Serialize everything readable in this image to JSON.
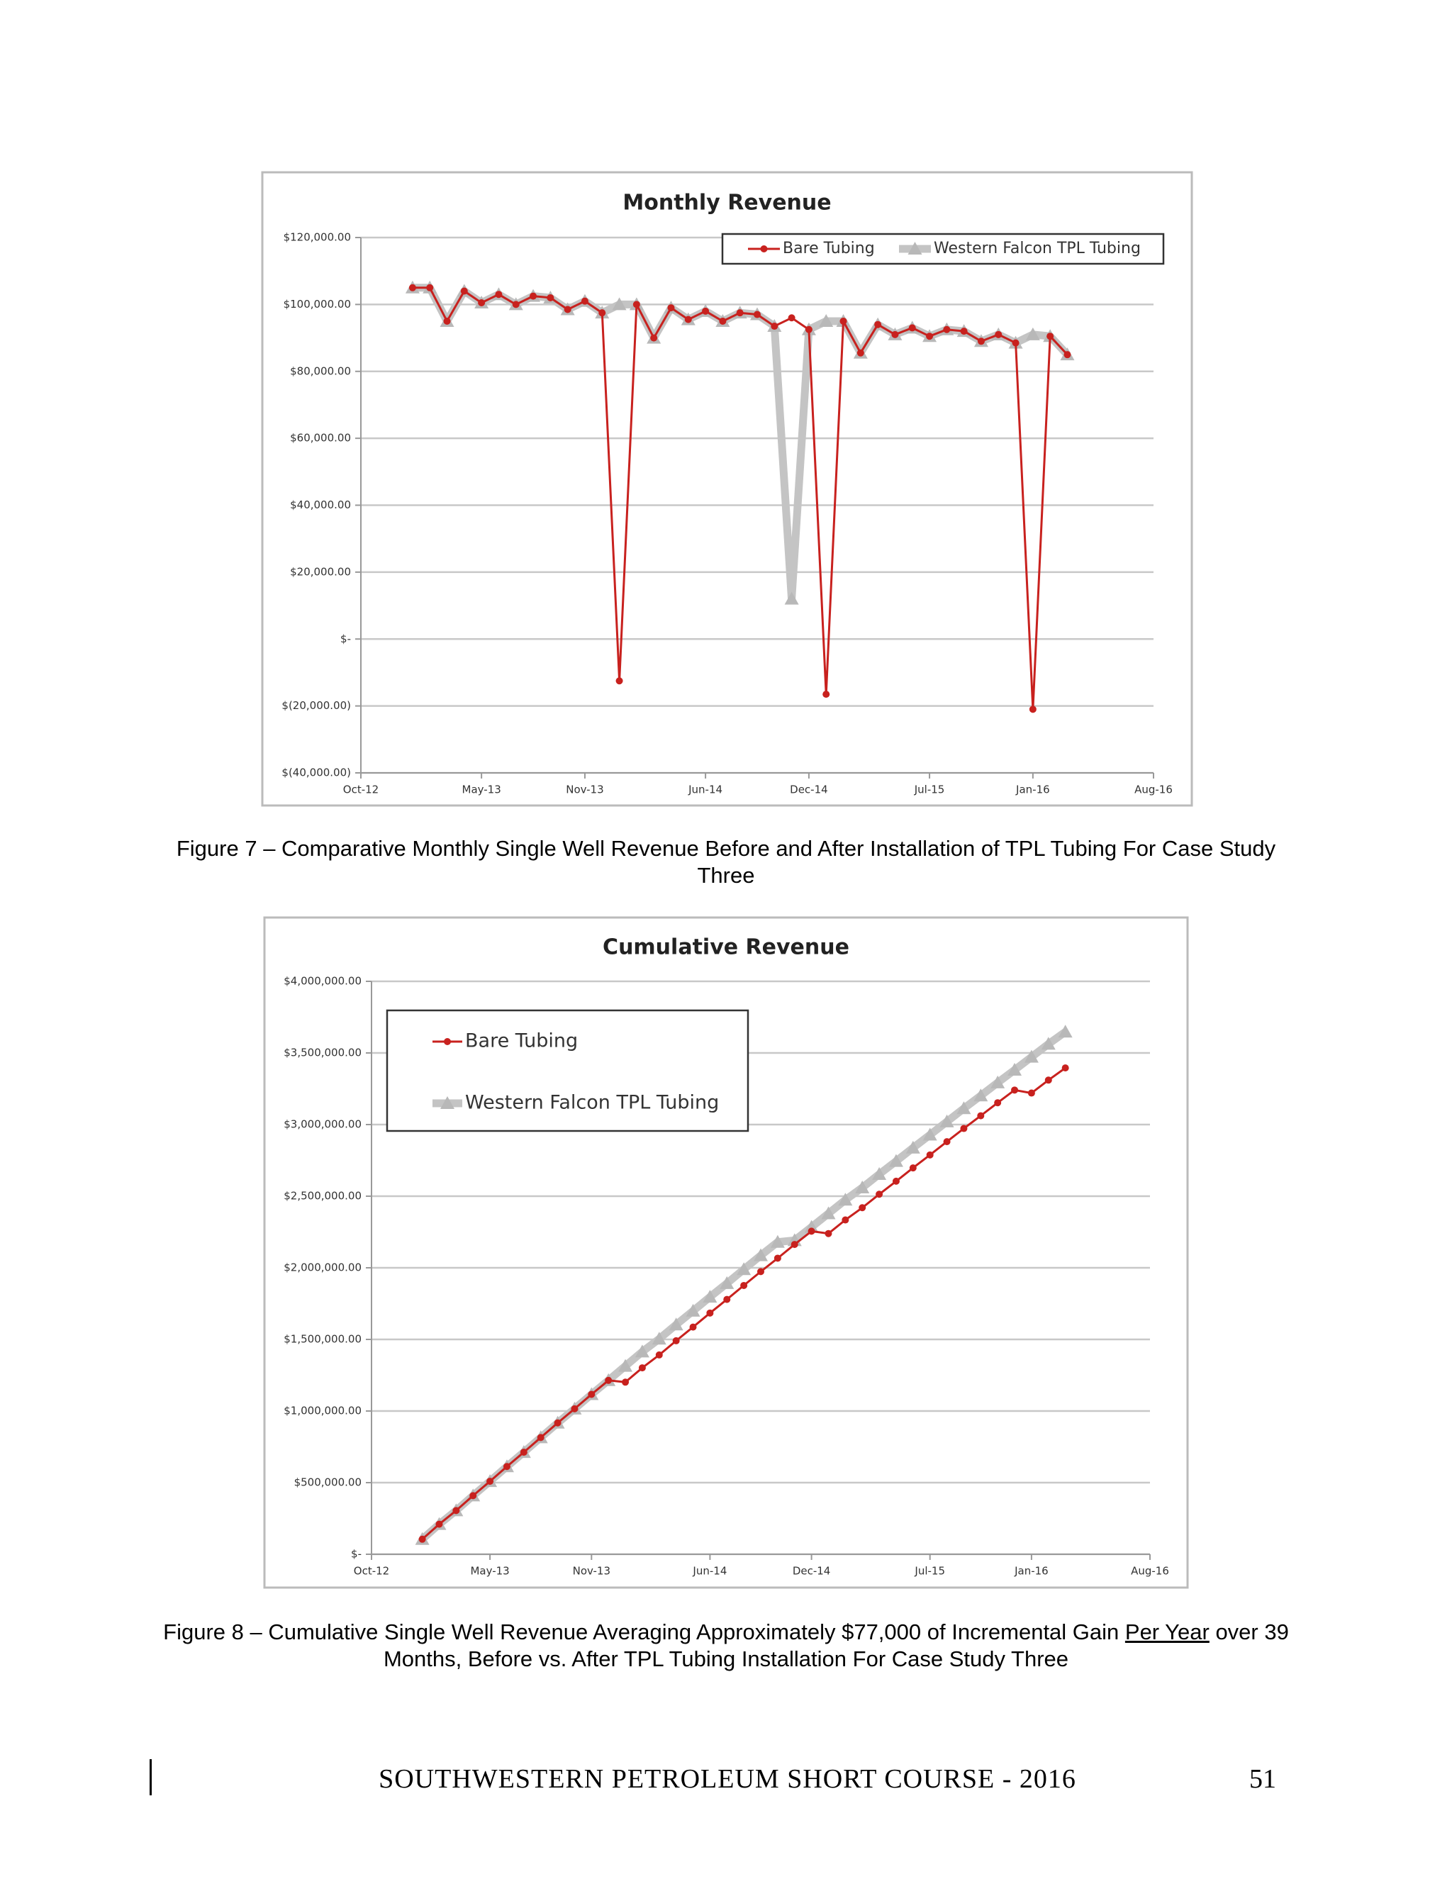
{
  "chart_data": [
    {
      "type": "line",
      "title": "Monthly Revenue",
      "x": [
        "Jan-13",
        "Feb-13",
        "Mar-13",
        "Apr-13",
        "May-13",
        "Jun-13",
        "Jul-13",
        "Aug-13",
        "Sep-13",
        "Oct-13",
        "Nov-13",
        "Dec-13",
        "Jan-14",
        "Feb-14",
        "Mar-14",
        "Apr-14",
        "May-14",
        "Jun-14",
        "Jul-14",
        "Aug-14",
        "Sep-14",
        "Oct-14",
        "Nov-14",
        "Dec-14",
        "Jan-15",
        "Feb-15",
        "Mar-15",
        "Apr-15",
        "May-15",
        "Jun-15",
        "Jul-15",
        "Aug-15",
        "Sep-15",
        "Oct-15",
        "Nov-15",
        "Dec-15",
        "Jan-16",
        "Feb-16",
        "Mar-16"
      ],
      "series": [
        {
          "name": "Bare Tubing",
          "color": "#c8211e",
          "marker": "circle",
          "values": [
            105000,
            105000,
            95000,
            104000,
            100500,
            103000,
            100000,
            102500,
            102000,
            98500,
            101000,
            97500,
            -12500,
            100000,
            90000,
            99000,
            95500,
            98000,
            95000,
            97500,
            97000,
            93500,
            96000,
            92500,
            -16500,
            95000,
            85500,
            94000,
            91000,
            93000,
            90500,
            92500,
            92000,
            89000,
            91000,
            88500,
            -21000,
            90500,
            85000
          ]
        },
        {
          "name": "Western Falcon TPL Tubing",
          "color": "#c4c4c4",
          "marker": "triangle",
          "values": [
            105000,
            105000,
            95000,
            104000,
            100500,
            103000,
            100000,
            102500,
            102000,
            98500,
            101000,
            97500,
            100000,
            100000,
            90000,
            99000,
            95500,
            98000,
            95000,
            97500,
            97000,
            93500,
            12000,
            92500,
            95000,
            95000,
            85500,
            94000,
            91000,
            93000,
            90500,
            92500,
            92000,
            89000,
            91000,
            88500,
            91000,
            90500,
            85000
          ]
        }
      ],
      "xlim": [
        "Oct-12",
        "Aug-16"
      ],
      "xticks": [
        "Oct-12",
        "May-13",
        "Nov-13",
        "Jun-14",
        "Dec-14",
        "Jul-15",
        "Jan-16",
        "Aug-16"
      ],
      "ylim": [
        -40000,
        120000
      ],
      "yticks": [
        {
          "value": -40000,
          "label": "$(40,000.00)"
        },
        {
          "value": -20000,
          "label": "$(20,000.00)"
        },
        {
          "value": 0,
          "label": "$-"
        },
        {
          "value": 20000,
          "label": "$20,000.00"
        },
        {
          "value": 40000,
          "label": "$40,000.00"
        },
        {
          "value": 60000,
          "label": "$60,000.00"
        },
        {
          "value": 80000,
          "label": "$80,000.00"
        },
        {
          "value": 100000,
          "label": "$100,000.00"
        },
        {
          "value": 120000,
          "label": "$120,000.00"
        }
      ],
      "grid": true
    },
    {
      "type": "line",
      "title": "Cumulative Revenue",
      "x": [
        "Jan-13",
        "Feb-13",
        "Mar-13",
        "Apr-13",
        "May-13",
        "Jun-13",
        "Jul-13",
        "Aug-13",
        "Sep-13",
        "Oct-13",
        "Nov-13",
        "Dec-13",
        "Jan-14",
        "Feb-14",
        "Mar-14",
        "Apr-14",
        "May-14",
        "Jun-14",
        "Jul-14",
        "Aug-14",
        "Sep-14",
        "Oct-14",
        "Nov-14",
        "Dec-14",
        "Jan-15",
        "Feb-15",
        "Mar-15",
        "Apr-15",
        "May-15",
        "Jun-15",
        "Jul-15",
        "Aug-15",
        "Sep-15",
        "Oct-15",
        "Nov-15",
        "Dec-15",
        "Jan-16",
        "Feb-16",
        "Mar-16"
      ],
      "series": [
        {
          "name": "Bare Tubing",
          "color": "#c8211e",
          "marker": "circle",
          "values": [
            105000,
            210000,
            305000,
            409000,
            509500,
            612500,
            712500,
            815000,
            917000,
            1015500,
            1116500,
            1214000,
            1201500,
            1301500,
            1391500,
            1490500,
            1586000,
            1684000,
            1779000,
            1876500,
            1973500,
            2067000,
            2163000,
            2255500,
            2239000,
            2334000,
            2419500,
            2513500,
            2604500,
            2697500,
            2788000,
            2880500,
            2972500,
            3061500,
            3152500,
            3241000,
            3220000,
            3310500,
            3395500
          ]
        },
        {
          "name": "Western Falcon TPL Tubing",
          "color": "#c4c4c4",
          "marker": "triangle",
          "values": [
            105000,
            210000,
            305000,
            409000,
            509500,
            612500,
            712500,
            815000,
            917000,
            1015500,
            1116500,
            1214000,
            1314000,
            1414000,
            1504000,
            1603000,
            1698500,
            1796500,
            1891500,
            1989000,
            2086000,
            2179500,
            2191500,
            2284000,
            2379000,
            2474000,
            2559500,
            2653500,
            2744500,
            2837500,
            2928000,
            3020500,
            3112500,
            3201500,
            3292500,
            3381000,
            3472000,
            3562500,
            3647500
          ]
        }
      ],
      "xlim": [
        "Oct-12",
        "Aug-16"
      ],
      "xticks": [
        "Oct-12",
        "May-13",
        "Nov-13",
        "Jun-14",
        "Dec-14",
        "Jul-15",
        "Jan-16",
        "Aug-16"
      ],
      "ylim": [
        0,
        4000000
      ],
      "yticks": [
        {
          "value": 0,
          "label": "$-"
        },
        {
          "value": 500000,
          "label": "$500,000.00"
        },
        {
          "value": 1000000,
          "label": "$1,000,000.00"
        },
        {
          "value": 1500000,
          "label": "$1,500,000.00"
        },
        {
          "value": 2000000,
          "label": "$2,000,000.00"
        },
        {
          "value": 2500000,
          "label": "$2,500,000.00"
        },
        {
          "value": 3000000,
          "label": "$3,000,000.00"
        },
        {
          "value": 3500000,
          "label": "$3,500,000.00"
        },
        {
          "value": 4000000,
          "label": "$4,000,000.00"
        }
      ],
      "grid": true
    }
  ],
  "captions": [
    {
      "text": "Figure 7 – Comparative Monthly Single Well Revenue Before and After Installation of TPL Tubing For Case Study Three"
    },
    {
      "text_before": "Figure 8 – Cumulative Single Well Revenue Averaging Approximately $77,000 of Incremental Gain ",
      "underlined": "Per Year",
      "text_after": " over 39 Months, Before vs. After TPL Tubing Installation For Case Study Three"
    }
  ],
  "footer": {
    "title": "SOUTHWESTERN PETROLEUM SHORT COURSE - 2016",
    "page": "51"
  }
}
